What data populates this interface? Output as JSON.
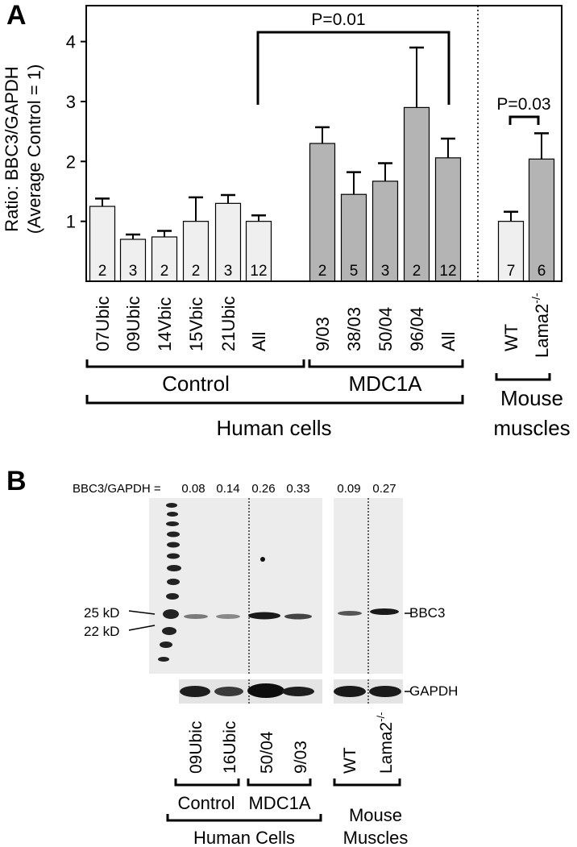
{
  "panel_a": {
    "label": "A",
    "ylabel_line1": "Ratio: BBC3/GAPDH",
    "ylabel_line2": "(Average Control = 1)",
    "yticks": [
      "1",
      "2",
      "3",
      "4"
    ],
    "p_human": "P=0.01",
    "p_mouse": "P=0.03",
    "group_control": "Control",
    "group_mdc1a": "MDC1A",
    "group_human": "Human cells",
    "group_mouse_1": "Mouse",
    "group_mouse_2": "muscles",
    "lama_base": "Lama2",
    "lama_sup": "-/-"
  },
  "chart_data": {
    "type": "bar",
    "ylabel": "Ratio: BBC3/GAPDH (Average Control = 1)",
    "ylim": [
      0,
      4.6
    ],
    "yticks": [
      1,
      2,
      3,
      4
    ],
    "categories": [
      "07Ubic",
      "09Ubic",
      "14Vbic",
      "15Vbic",
      "21Ubic",
      "All",
      "9/03",
      "38/03",
      "50/04",
      "96/04",
      "All",
      "WT",
      "Lama2-/-"
    ],
    "values": [
      1.25,
      0.7,
      0.74,
      1.0,
      1.3,
      1.0,
      2.3,
      1.45,
      1.67,
      2.9,
      2.06,
      1.0,
      2.04
    ],
    "errors": [
      0.13,
      0.08,
      0.1,
      0.4,
      0.14,
      0.1,
      0.27,
      0.37,
      0.3,
      1.0,
      0.32,
      0.16,
      0.43
    ],
    "n": [
      "2",
      "3",
      "2",
      "2",
      "3",
      "12",
      "2",
      "5",
      "3",
      "2",
      "12",
      "7",
      "6"
    ],
    "colors": [
      "#efefef",
      "#efefef",
      "#efefef",
      "#efefef",
      "#efefef",
      "#efefef",
      "#b4b4b4",
      "#b4b4b4",
      "#b4b4b4",
      "#b4b4b4",
      "#b4b4b4",
      "#efefef",
      "#b4b4b4"
    ],
    "annotations": [
      "P=0.01",
      "P=0.03"
    ]
  },
  "panel_b": {
    "label": "B",
    "ratio_prefix": "BBC3/GAPDH =",
    "ratios_human": [
      "0.08",
      "0.14",
      "0.26",
      "0.33"
    ],
    "ratios_mouse": [
      "0.09",
      "0.27"
    ],
    "marker_25": "25 kD",
    "marker_22": "22 kD",
    "bbc3": "BBC3",
    "gapdh": "GAPDH",
    "lanes": [
      "09Ubic",
      "16Ubic",
      "50/04",
      "9/03",
      "WT",
      "Lama2"
    ],
    "lama_sup": "-/-",
    "control": "Control",
    "mdc1a": "MDC1A",
    "human_cells": "Human Cells",
    "mouse_1": "Mouse",
    "mouse_2": "Muscles"
  }
}
